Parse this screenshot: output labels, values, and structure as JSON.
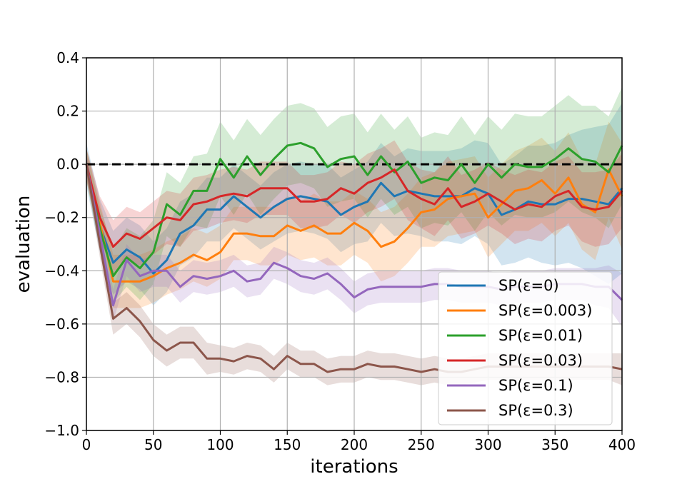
{
  "chart_data": {
    "type": "line",
    "title": "",
    "xlabel": "iterations",
    "ylabel": "evaluation",
    "xlim": [
      0,
      400
    ],
    "ylim": [
      -1.0,
      0.4
    ],
    "grid": true,
    "legend_position": "bottom-right",
    "reference_line": {
      "y": 0.0,
      "style": "dashed",
      "color": "#000000"
    },
    "x": [
      0,
      10,
      20,
      30,
      40,
      50,
      60,
      70,
      80,
      90,
      100,
      110,
      120,
      130,
      140,
      150,
      160,
      170,
      180,
      190,
      200,
      210,
      220,
      230,
      240,
      250,
      260,
      270,
      280,
      290,
      300,
      310,
      320,
      330,
      340,
      350,
      360,
      370,
      380,
      390,
      400
    ],
    "x_ticks": [
      "0",
      "50",
      "100",
      "150",
      "200",
      "250",
      "300",
      "350",
      "400"
    ],
    "y_ticks": [
      "−1.0",
      "−0.8",
      "−0.6",
      "−0.4",
      "−0.2",
      "0.0",
      "0.2",
      "0.4"
    ],
    "series": [
      {
        "name": "SP(ε=0)",
        "color": "#1f77b4",
        "values": [
          0.0,
          -0.23,
          -0.37,
          -0.32,
          -0.35,
          -0.41,
          -0.36,
          -0.26,
          -0.23,
          -0.17,
          -0.17,
          -0.12,
          -0.16,
          -0.2,
          -0.16,
          -0.13,
          -0.12,
          -0.13,
          -0.14,
          -0.19,
          -0.16,
          -0.14,
          -0.07,
          -0.12,
          -0.1,
          -0.11,
          -0.12,
          -0.12,
          -0.12,
          -0.09,
          -0.11,
          -0.19,
          -0.17,
          -0.14,
          -0.15,
          -0.15,
          -0.13,
          -0.13,
          -0.14,
          -0.15,
          -0.09
        ],
        "spread": [
          0.08,
          0.1,
          0.12,
          0.12,
          0.12,
          0.12,
          0.12,
          0.12,
          0.12,
          0.12,
          0.12,
          0.12,
          0.12,
          0.12,
          0.13,
          0.13,
          0.13,
          0.13,
          0.14,
          0.14,
          0.14,
          0.15,
          0.15,
          0.15,
          0.16,
          0.16,
          0.17,
          0.17,
          0.18,
          0.18,
          0.19,
          0.19,
          0.2,
          0.21,
          0.22,
          0.23,
          0.24,
          0.26,
          0.28,
          0.3,
          0.32
        ]
      },
      {
        "name": "SP(ε=0.003)",
        "color": "#ff7f0e",
        "values": [
          0.0,
          -0.22,
          -0.44,
          -0.44,
          -0.44,
          -0.42,
          -0.39,
          -0.37,
          -0.34,
          -0.36,
          -0.33,
          -0.26,
          -0.26,
          -0.27,
          -0.27,
          -0.23,
          -0.25,
          -0.23,
          -0.26,
          -0.26,
          -0.22,
          -0.25,
          -0.31,
          -0.29,
          -0.24,
          -0.18,
          -0.17,
          -0.13,
          -0.12,
          -0.11,
          -0.2,
          -0.15,
          -0.1,
          -0.09,
          -0.06,
          -0.11,
          -0.05,
          -0.15,
          -0.18,
          -0.02,
          -0.12
        ],
        "spread": [
          0.06,
          0.08,
          0.1,
          0.1,
          0.1,
          0.1,
          0.1,
          0.1,
          0.1,
          0.1,
          0.1,
          0.1,
          0.1,
          0.11,
          0.11,
          0.11,
          0.11,
          0.12,
          0.12,
          0.12,
          0.12,
          0.12,
          0.13,
          0.13,
          0.13,
          0.13,
          0.14,
          0.14,
          0.14,
          0.14,
          0.15,
          0.15,
          0.15,
          0.16,
          0.16,
          0.16,
          0.17,
          0.17,
          0.18,
          0.18,
          0.2
        ]
      },
      {
        "name": "SP(ε=0.01)",
        "color": "#2ca02c",
        "values": [
          0.0,
          -0.24,
          -0.42,
          -0.35,
          -0.39,
          -0.33,
          -0.15,
          -0.19,
          -0.1,
          -0.1,
          0.02,
          -0.05,
          0.03,
          -0.04,
          0.02,
          0.07,
          0.08,
          0.06,
          -0.01,
          0.02,
          0.03,
          -0.04,
          0.03,
          -0.03,
          0.01,
          -0.07,
          -0.05,
          -0.06,
          0.0,
          -0.07,
          0.0,
          -0.05,
          0.0,
          -0.01,
          -0.01,
          0.02,
          0.06,
          0.02,
          0.01,
          -0.03,
          0.07
        ],
        "spread": [
          0.06,
          0.08,
          0.1,
          0.11,
          0.12,
          0.12,
          0.12,
          0.12,
          0.13,
          0.14,
          0.14,
          0.14,
          0.14,
          0.15,
          0.15,
          0.15,
          0.15,
          0.15,
          0.15,
          0.16,
          0.16,
          0.16,
          0.16,
          0.16,
          0.17,
          0.17,
          0.17,
          0.17,
          0.18,
          0.18,
          0.18,
          0.18,
          0.19,
          0.19,
          0.19,
          0.2,
          0.2,
          0.2,
          0.21,
          0.21,
          0.22
        ]
      },
      {
        "name": "SP(ε=0.03)",
        "color": "#d62728",
        "values": [
          0.0,
          -0.2,
          -0.31,
          -0.26,
          -0.28,
          -0.24,
          -0.2,
          -0.21,
          -0.15,
          -0.14,
          -0.12,
          -0.11,
          -0.12,
          -0.09,
          -0.09,
          -0.09,
          -0.14,
          -0.14,
          -0.13,
          -0.09,
          -0.11,
          -0.07,
          -0.05,
          -0.02,
          -0.1,
          -0.13,
          -0.15,
          -0.09,
          -0.16,
          -0.14,
          -0.11,
          -0.14,
          -0.17,
          -0.15,
          -0.16,
          -0.12,
          -0.1,
          -0.16,
          -0.17,
          -0.16,
          -0.1
        ],
        "spread": [
          0.06,
          0.08,
          0.1,
          0.1,
          0.1,
          0.1,
          0.1,
          0.1,
          0.1,
          0.1,
          0.1,
          0.1,
          0.1,
          0.1,
          0.1,
          0.1,
          0.1,
          0.1,
          0.1,
          0.1,
          0.11,
          0.11,
          0.11,
          0.11,
          0.11,
          0.11,
          0.12,
          0.12,
          0.12,
          0.12,
          0.12,
          0.12,
          0.13,
          0.13,
          0.13,
          0.13,
          0.13,
          0.13,
          0.14,
          0.14,
          0.14
        ]
      },
      {
        "name": "SP(ε=0.1)",
        "color": "#9467bd",
        "values": [
          0.0,
          -0.26,
          -0.53,
          -0.36,
          -0.42,
          -0.4,
          -0.4,
          -0.46,
          -0.42,
          -0.43,
          -0.42,
          -0.4,
          -0.44,
          -0.43,
          -0.37,
          -0.39,
          -0.42,
          -0.43,
          -0.41,
          -0.45,
          -0.5,
          -0.47,
          -0.46,
          -0.46,
          -0.46,
          -0.46,
          -0.45,
          -0.45,
          -0.46,
          -0.46,
          -0.46,
          -0.47,
          -0.46,
          -0.46,
          -0.46,
          -0.45,
          -0.45,
          -0.45,
          -0.46,
          -0.46,
          -0.51
        ],
        "spread": [
          0.04,
          0.05,
          0.06,
          0.06,
          0.06,
          0.06,
          0.06,
          0.06,
          0.06,
          0.06,
          0.06,
          0.06,
          0.06,
          0.06,
          0.06,
          0.06,
          0.06,
          0.06,
          0.06,
          0.06,
          0.06,
          0.06,
          0.06,
          0.06,
          0.06,
          0.06,
          0.06,
          0.06,
          0.06,
          0.06,
          0.06,
          0.06,
          0.06,
          0.06,
          0.06,
          0.06,
          0.06,
          0.06,
          0.07,
          0.08,
          0.1
        ]
      },
      {
        "name": "SP(ε=0.3)",
        "color": "#8c564b",
        "values": [
          0.0,
          -0.3,
          -0.58,
          -0.54,
          -0.59,
          -0.66,
          -0.7,
          -0.67,
          -0.67,
          -0.73,
          -0.73,
          -0.74,
          -0.72,
          -0.73,
          -0.77,
          -0.72,
          -0.75,
          -0.75,
          -0.78,
          -0.77,
          -0.77,
          -0.75,
          -0.76,
          -0.76,
          -0.77,
          -0.78,
          -0.77,
          -0.78,
          -0.78,
          -0.77,
          -0.76,
          -0.76,
          -0.76,
          -0.76,
          -0.76,
          -0.76,
          -0.76,
          -0.76,
          -0.76,
          -0.76,
          -0.77
        ],
        "spread": [
          0.04,
          0.05,
          0.06,
          0.06,
          0.06,
          0.06,
          0.06,
          0.06,
          0.06,
          0.06,
          0.05,
          0.05,
          0.05,
          0.05,
          0.05,
          0.05,
          0.05,
          0.05,
          0.05,
          0.05,
          0.05,
          0.05,
          0.05,
          0.05,
          0.05,
          0.05,
          0.05,
          0.05,
          0.05,
          0.05,
          0.05,
          0.05,
          0.05,
          0.05,
          0.05,
          0.05,
          0.05,
          0.05,
          0.05,
          0.05,
          0.06
        ]
      }
    ]
  }
}
